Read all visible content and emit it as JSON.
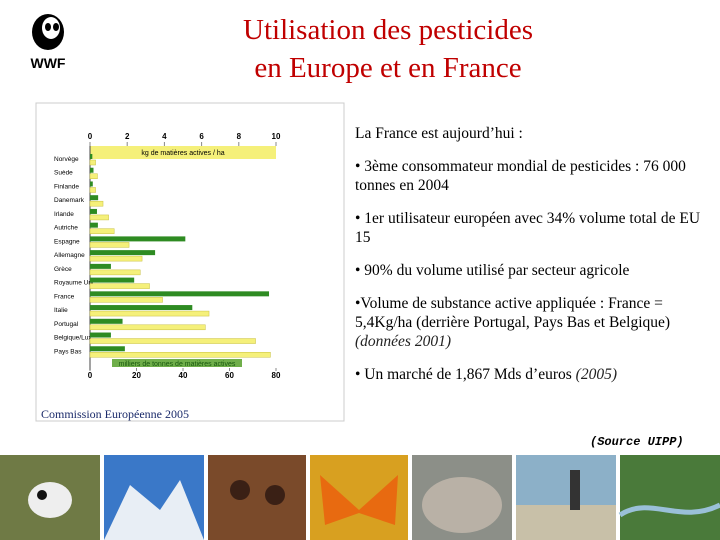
{
  "header": {
    "logo_text": "WWF",
    "title_line1": "Utilisation des pesticides",
    "title_line2": "en Europe et en France"
  },
  "chart_data": {
    "type": "hbar",
    "categories": [
      "Norvège",
      "Suède",
      "Finlande",
      "Danemark",
      "Irlande",
      "Autriche",
      "Espagne",
      "Allemagne",
      "Grèce",
      "Royaume Uni",
      "France",
      "Italie",
      "Portugal",
      "Belgique/Lux",
      "Pays Bas"
    ],
    "series": [
      {
        "name": "milliers de tonnes de matières actives",
        "color": "#2e8b22",
        "axis": "x",
        "values": [
          1,
          1.5,
          1.2,
          3.5,
          3,
          3.4,
          41,
          28,
          9,
          19,
          77,
          44,
          14,
          9,
          15
        ]
      },
      {
        "name": "kg de matières actives / ha",
        "color": "#f5f07a",
        "axis": "x2",
        "values": [
          0.3,
          0.4,
          0.3,
          0.7,
          1,
          1.3,
          2.1,
          2.8,
          2.7,
          3.2,
          3.9,
          6.4,
          6.2,
          8.9,
          9.7
        ]
      }
    ],
    "xlim": [
      0,
      80
    ],
    "xticks": [
      0,
      20,
      40,
      60,
      80
    ],
    "x2lim": [
      0,
      10
    ],
    "x2ticks": [
      0,
      2,
      4,
      6,
      8,
      10
    ],
    "source": "Commission Européenne 2005"
  },
  "body": {
    "intro": "La France est aujourd’hui :",
    "bullets": [
      {
        "text": "• 3ème consommateur mondial de pesticides : 76 000 tonnes en 2004"
      },
      {
        "text": "• 1er utilisateur européen avec 34% volume total de EU 15"
      },
      {
        "text": "• 90% du volume utilisé par secteur agricole"
      },
      {
        "text": "•Volume de substance active appliquée : France = 5,4Kg/ha (derrière Portugal, Pays Bas et Belgique)",
        "note": "(données 2001)"
      },
      {
        "text": "• Un marché de 1,867 Mds d’euros",
        "note": "(2005)"
      }
    ],
    "source": "(Source UIPP)"
  }
}
